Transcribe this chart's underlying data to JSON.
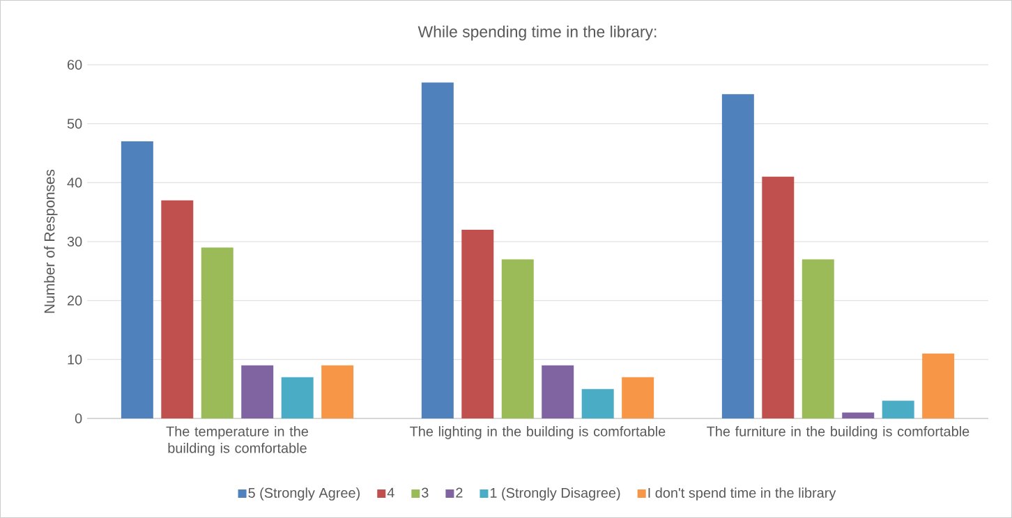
{
  "chart_data": {
    "type": "bar",
    "title": "While spending time in the library:",
    "ylabel": "Number of Responses",
    "categories": [
      "The temperature in the building is comfortable",
      "The lighting in the building is comfortable",
      "The furniture in the building is comfortable"
    ],
    "series": [
      {
        "name": "5 (Strongly Agree)",
        "color": "#4f81bd",
        "values": [
          47,
          57,
          55
        ]
      },
      {
        "name": "4",
        "color": "#c0504d",
        "values": [
          37,
          32,
          41
        ]
      },
      {
        "name": "3",
        "color": "#9bbb59",
        "values": [
          29,
          27,
          27
        ]
      },
      {
        "name": "2",
        "color": "#8064a2",
        "values": [
          9,
          9,
          1
        ]
      },
      {
        "name": "1 (Strongly Disagree)",
        "color": "#4bacc6",
        "values": [
          7,
          5,
          3
        ]
      },
      {
        "name": "I don't spend time in the library",
        "color": "#f79646",
        "values": [
          9,
          7,
          11
        ]
      }
    ],
    "ylim": [
      0,
      60
    ],
    "yticks": [
      0,
      10,
      20,
      30,
      40,
      50,
      60
    ],
    "grid": "y",
    "legend": "bottom"
  }
}
